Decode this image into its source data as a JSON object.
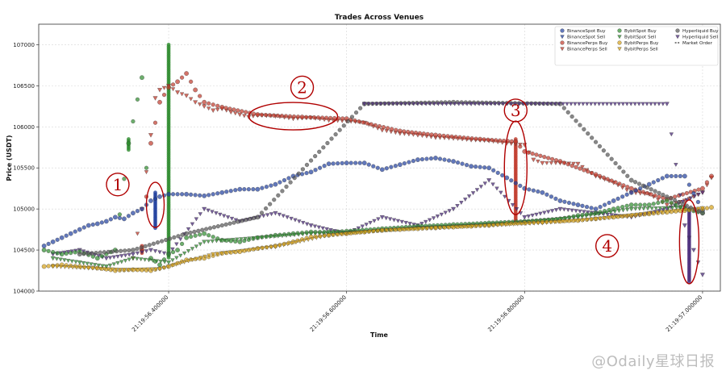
{
  "watermark": "@Odaily星球日报",
  "colors": {
    "binance_spot": "#1f3f9e",
    "binance_perps": "#c0392b",
    "bybit_spot": "#2e8b2e",
    "bybit_perps": "#d4a017",
    "hyperliquid": "#555555",
    "hyperliquid_sell": "#4a2a7a",
    "annotation": "#b00000"
  },
  "chart_data": {
    "type": "scatter",
    "title": "Trades Across Venues",
    "xlabel": "Time",
    "ylabel": "Price (USDT)",
    "xlim": [
      56.254,
      57.02
    ],
    "ylim": [
      104000,
      107250
    ],
    "yticks": [
      104000,
      104500,
      105000,
      105500,
      106000,
      106500,
      107000
    ],
    "xticks": [
      {
        "value": 56.4,
        "label": "21:19:56.400000"
      },
      {
        "value": 56.6,
        "label": "21:19:56.600000"
      },
      {
        "value": 56.8,
        "label": "21:19:56.800000"
      },
      {
        "value": 57.0,
        "label": "21:19:57.000000"
      }
    ],
    "grid": true,
    "legend_position": "top-right",
    "legend": [
      {
        "label": "BinanceSpot Buy",
        "color_key": "binance_spot",
        "marker": "circle"
      },
      {
        "label": "BinanceSpot Sell",
        "color_key": "binance_spot",
        "marker": "triangle"
      },
      {
        "label": "BinancePerps Buy",
        "color_key": "binance_perps",
        "marker": "circle"
      },
      {
        "label": "BinancePerps Sell",
        "color_key": "binance_perps",
        "marker": "triangle"
      },
      {
        "label": "BybitSpot Buy",
        "color_key": "bybit_spot",
        "marker": "circle"
      },
      {
        "label": "BybitSpot Sell",
        "color_key": "bybit_spot",
        "marker": "triangle"
      },
      {
        "label": "BybitPerps Buy",
        "color_key": "bybit_perps",
        "marker": "circle"
      },
      {
        "label": "BybitPerps Sell",
        "color_key": "bybit_perps",
        "marker": "triangle"
      },
      {
        "label": "Hyperliquid Buy",
        "color_key": "hyperliquid",
        "marker": "circle"
      },
      {
        "label": "Hyperliquid Sell",
        "color_key": "hyperliquid_sell",
        "marker": "triangle"
      },
      {
        "label": "Market Order",
        "color_key": "hyperliquid",
        "marker": "dash"
      }
    ],
    "series": [
      {
        "name": "BinancePerps Sell",
        "color_key": "binance_perps",
        "marker": "triangle",
        "x": [
          56.36,
          56.37,
          56.38,
          56.385,
          56.39,
          56.4,
          56.41,
          56.42,
          56.43,
          56.44,
          56.45,
          56.46,
          56.47,
          56.48,
          56.49,
          56.5,
          56.52,
          56.54,
          56.56,
          56.58,
          56.6,
          56.62,
          56.64,
          56.66,
          56.68,
          56.7,
          56.72,
          56.74,
          56.76,
          56.78,
          56.8,
          56.81,
          56.82,
          56.84,
          56.86,
          56.88,
          56.9,
          56.92,
          56.94,
          56.96,
          56.98,
          57.0,
          57.01
        ],
        "y": [
          104400,
          105000,
          105900,
          106350,
          106450,
          106500,
          106420,
          106380,
          106300,
          106250,
          106200,
          106220,
          106180,
          106150,
          106120,
          106140,
          106130,
          106100,
          106110,
          106080,
          106070,
          106050,
          105960,
          105920,
          105900,
          105870,
          105860,
          105840,
          105830,
          105800,
          105780,
          105600,
          105560,
          105560,
          105550,
          105400,
          105320,
          105200,
          105180,
          105050,
          105100,
          105200,
          105380
        ]
      },
      {
        "name": "BinancePerps Buy",
        "color_key": "binance_perps",
        "marker": "circle",
        "x": [
          56.37,
          56.38,
          56.39,
          56.4,
          56.41,
          56.42,
          56.43,
          56.44,
          56.46,
          56.5,
          56.55,
          56.6,
          56.66,
          56.7,
          56.75,
          56.79,
          56.8,
          56.84,
          56.88,
          56.92,
          56.96,
          57.0,
          57.01
        ],
        "y": [
          104500,
          105800,
          106300,
          106480,
          106550,
          106650,
          106450,
          106300,
          106240,
          106150,
          106120,
          106100,
          105950,
          105900,
          105850,
          105820,
          105700,
          105580,
          105420,
          105250,
          105120,
          105250,
          105400
        ]
      },
      {
        "name": "BinanceSpot Buy",
        "color_key": "binance_spot",
        "marker": "circle",
        "x": [
          56.26,
          56.27,
          56.28,
          56.29,
          56.3,
          56.31,
          56.32,
          56.33,
          56.34,
          56.35,
          56.36,
          56.37,
          56.38,
          56.39,
          56.4,
          56.42,
          56.44,
          56.46,
          56.48,
          56.5,
          56.52,
          56.54,
          56.56,
          56.58,
          56.6,
          56.62,
          56.64,
          56.66,
          56.68,
          56.7,
          56.72,
          56.74,
          56.76,
          56.78,
          56.8,
          56.82,
          56.84,
          56.86,
          56.88,
          56.9,
          56.92,
          56.94,
          56.96,
          56.98,
          57.0
        ],
        "y": [
          104550,
          104600,
          104650,
          104700,
          104750,
          104800,
          104820,
          104850,
          104900,
          104880,
          104950,
          105000,
          105100,
          105150,
          105180,
          105180,
          105160,
          105200,
          105240,
          105240,
          105300,
          105400,
          105450,
          105550,
          105560,
          105560,
          105480,
          105540,
          105600,
          105620,
          105580,
          105520,
          105500,
          105380,
          105250,
          105200,
          105100,
          105050,
          105000,
          105100,
          105200,
          105300,
          105400,
          105400,
          104980
        ]
      },
      {
        "name": "BinanceSpot Sell",
        "color_key": "hyperliquid_sell",
        "marker": "triangle",
        "x": [
          56.27,
          56.3,
          56.33,
          56.36,
          56.38,
          56.4,
          56.44,
          56.48,
          56.52,
          56.56,
          56.6,
          56.64,
          56.68,
          56.72,
          56.76,
          56.8,
          56.84,
          56.88,
          56.92,
          56.96,
          57.0
        ],
        "y": [
          104450,
          104500,
          104400,
          104450,
          104500,
          104450,
          105000,
          104850,
          104950,
          104800,
          104700,
          104900,
          104800,
          105000,
          105350,
          104900,
          105000,
          104950,
          104900,
          105000,
          105200
        ]
      },
      {
        "name": "BybitSpot Buy",
        "color_key": "bybit_spot",
        "marker": "circle",
        "x": [
          56.26,
          56.28,
          56.3,
          56.32,
          56.34,
          56.355,
          56.37,
          56.38,
          56.39,
          56.4,
          56.41,
          56.42,
          56.44,
          56.46,
          56.48,
          56.5,
          56.52,
          56.54,
          56.56,
          56.58,
          56.6,
          56.64,
          56.68,
          56.72,
          56.76,
          56.8,
          56.84,
          56.86,
          56.88,
          56.9,
          56.92,
          56.94,
          56.96,
          56.98,
          57.0
        ],
        "y": [
          104500,
          104450,
          104480,
          104400,
          104500,
          105800,
          106600,
          104400,
          104320,
          104450,
          104500,
          104650,
          104700,
          104620,
          104600,
          104650,
          104680,
          104700,
          104720,
          104720,
          104730,
          104760,
          104790,
          104810,
          104830,
          104850,
          104880,
          104920,
          104950,
          105000,
          105050,
          105050,
          105100,
          105000,
          104950
        ]
      },
      {
        "name": "BybitSpot Sell",
        "color_key": "bybit_spot",
        "marker": "triangle",
        "x": [
          56.27,
          56.3,
          56.33,
          56.36,
          56.4,
          56.44,
          56.5,
          56.56,
          56.62,
          56.68,
          56.74,
          56.8,
          56.86,
          56.92,
          56.98
        ],
        "y": [
          104400,
          104350,
          104300,
          104400,
          104350,
          104600,
          104650,
          104700,
          104720,
          104770,
          104800,
          104840,
          104900,
          105000,
          105020
        ]
      },
      {
        "name": "BybitPerps Buy",
        "color_key": "bybit_perps",
        "marker": "circle",
        "x": [
          56.26,
          56.28,
          56.3,
          56.32,
          56.34,
          56.36,
          56.38,
          56.4,
          56.42,
          56.44,
          56.46,
          56.48,
          56.5,
          56.52,
          56.54,
          56.56,
          56.58,
          56.6,
          56.62,
          56.64,
          56.66,
          56.68,
          56.7,
          56.72,
          56.74,
          56.76,
          56.78,
          56.8,
          56.82,
          56.84,
          56.86,
          56.88,
          56.9,
          56.92,
          56.94,
          56.96,
          56.98,
          57.0,
          57.01
        ],
        "y": [
          104300,
          104320,
          104300,
          104280,
          104250,
          104260,
          104250,
          104300,
          104380,
          104400,
          104460,
          104480,
          104520,
          104550,
          104600,
          104660,
          104680,
          104700,
          104720,
          104740,
          104750,
          104760,
          104770,
          104780,
          104790,
          104800,
          104820,
          104830,
          104840,
          104850,
          104860,
          104880,
          104900,
          104920,
          104940,
          104960,
          104980,
          105000,
          105020
        ]
      },
      {
        "name": "BybitPerps Sell",
        "color_key": "bybit_perps",
        "marker": "triangle",
        "x": [
          56.27,
          56.31,
          56.35,
          56.39,
          56.45,
          56.52,
          56.58,
          56.64,
          56.7,
          56.76,
          56.82,
          56.88,
          56.94,
          57.0
        ],
        "y": [
          104300,
          104280,
          104260,
          104270,
          104450,
          104540,
          104680,
          104740,
          104770,
          104800,
          104830,
          104880,
          104950,
          105010
        ]
      },
      {
        "name": "Hyperliquid Buy",
        "color_key": "hyperliquid",
        "marker": "circle",
        "x": [
          56.3,
          56.36,
          56.42,
          56.5,
          56.62,
          56.72,
          56.84,
          56.92,
          57.0
        ],
        "y": [
          104450,
          104500,
          104700,
          104900,
          106280,
          106300,
          106280,
          105350,
          104950
        ]
      },
      {
        "name": "Hyperliquid Sell",
        "color_key": "hyperliquid_sell",
        "marker": "triangle",
        "x": [
          56.62,
          56.74,
          56.96,
          56.98,
          56.99,
          57.0
        ],
        "y": [
          106280,
          106280,
          106280,
          104800,
          104500,
          104200
        ]
      }
    ],
    "vertical_runs": [
      {
        "name": "BinanceSpot burst",
        "color_key": "binance_spot",
        "x": 56.385,
        "y_from": 104750,
        "y_to": 105200
      },
      {
        "name": "BybitSpot spike",
        "color_key": "bybit_spot",
        "x": 56.4,
        "y_from": 104400,
        "y_to": 107000
      },
      {
        "name": "BybitSpot early spike",
        "color_key": "bybit_spot",
        "x": 56.355,
        "y_from": 105700,
        "y_to": 105850
      },
      {
        "name": "BinancePerps drop",
        "color_key": "binance_perps",
        "x": 56.79,
        "y_from": 104850,
        "y_to": 105850
      },
      {
        "name": "Hyperliquid sell wick",
        "color_key": "hyperliquid_sell",
        "x": 56.985,
        "y_from": 104100,
        "y_to": 105000
      },
      {
        "name": "BinancePerps early",
        "color_key": "binance_perps",
        "x": 56.37,
        "y_from": 104450,
        "y_to": 104550
      }
    ],
    "annotations": [
      {
        "label": "1",
        "x": 56.37,
        "y": 105200
      },
      {
        "label": "2",
        "x": 56.55,
        "y": 106480
      },
      {
        "label": "3",
        "x": 56.79,
        "y": 106200
      },
      {
        "label": "4",
        "x": 56.92,
        "y": 104550
      }
    ]
  }
}
